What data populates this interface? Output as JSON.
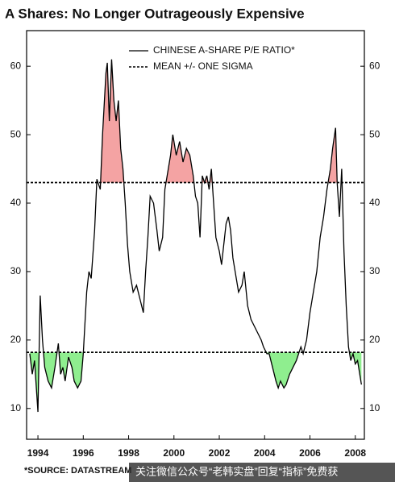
{
  "chart_data": {
    "type": "line",
    "title": "A Shares: No Longer Outrageously Expensive",
    "source": "*SOURCE: DATASTREAM",
    "watermark": "关注微信公众号“老韩实盘”回复“指标”免费获",
    "x": [
      1993.64,
      1993.75,
      1993.85,
      1993.95,
      1994.0,
      1994.05,
      1994.1,
      1994.2,
      1994.3,
      1994.45,
      1994.6,
      1994.75,
      1994.9,
      1995.0,
      1995.1,
      1995.2,
      1995.35,
      1995.5,
      1995.6,
      1995.75,
      1995.9,
      1996.0,
      1996.15,
      1996.25,
      1996.35,
      1996.5,
      1996.6,
      1996.75,
      1996.85,
      1996.95,
      1997.0,
      1997.06,
      1997.15,
      1997.25,
      1997.35,
      1997.45,
      1997.55,
      1997.65,
      1997.75,
      1997.85,
      1997.95,
      1998.05,
      1998.2,
      1998.35,
      1998.5,
      1998.65,
      1998.75,
      1998.85,
      1998.95,
      1999.1,
      1999.25,
      1999.35,
      1999.5,
      1999.6,
      1999.75,
      1999.85,
      1999.95,
      2000.1,
      2000.25,
      2000.4,
      2000.55,
      2000.7,
      2000.85,
      2000.95,
      2001.05,
      2001.15,
      2001.25,
      2001.35,
      2001.45,
      2001.55,
      2001.65,
      2001.75,
      2001.85,
      2002.0,
      2002.1,
      2002.2,
      2002.3,
      2002.4,
      2002.5,
      2002.6,
      2002.75,
      2002.85,
      2003.0,
      2003.1,
      2003.25,
      2003.4,
      2003.55,
      2003.7,
      2003.85,
      2003.95,
      2004.1,
      2004.2,
      2004.35,
      2004.5,
      2004.6,
      2004.7,
      2004.85,
      2004.95,
      2005.1,
      2005.25,
      2005.4,
      2005.5,
      2005.6,
      2005.7,
      2005.85,
      2006.0,
      2006.15,
      2006.3,
      2006.45,
      2006.6,
      2006.75,
      2006.9,
      2007.0,
      2007.13,
      2007.2,
      2007.3,
      2007.4,
      2007.5,
      2007.6,
      2007.7,
      2007.8,
      2007.9,
      2008.0,
      2008.1,
      2008.27
    ],
    "series": [
      {
        "name": "CHINESE A-SHARE P/E RATIO*",
        "color": "#000000",
        "values": [
          18,
          15,
          17,
          12,
          9.5,
          18,
          26.5,
          20,
          16,
          14,
          13,
          16,
          19.5,
          15,
          16,
          14,
          17.5,
          16,
          14,
          13,
          14,
          18,
          27,
          30,
          29,
          36,
          43.5,
          42,
          50,
          56,
          59,
          60.5,
          52,
          61,
          55,
          52,
          55,
          48,
          45,
          40,
          34,
          30,
          27,
          28,
          26,
          24,
          30,
          35,
          41,
          40,
          36,
          33,
          35,
          42,
          45,
          47,
          50,
          47,
          49,
          46,
          48,
          47,
          44,
          41,
          40,
          35,
          44,
          43,
          44,
          42,
          45,
          40,
          35,
          33,
          31,
          34,
          37,
          38,
          36,
          32,
          29,
          27,
          28,
          30,
          25,
          23,
          22,
          21,
          20,
          19,
          18,
          18,
          16,
          14,
          13,
          14,
          13,
          13.5,
          15,
          16,
          17,
          18,
          19,
          18,
          20,
          24,
          27,
          30,
          35,
          38,
          42,
          45,
          48,
          51,
          43,
          38,
          45,
          33,
          25,
          19,
          17,
          18,
          16.5,
          17,
          13.5
        ]
      }
    ],
    "mean_lines": {
      "name": "MEAN +/- ONE SIGMA",
      "values": [
        43,
        18.2
      ]
    },
    "upper_fill": "#f4a3a3",
    "lower_fill": "#8fee8f",
    "xlim": [
      1993.5,
      2008.4
    ],
    "xticks": [
      1994,
      1996,
      1998,
      2000,
      2002,
      2004,
      2006,
      2008
    ],
    "ylim": [
      5.5,
      65.2
    ],
    "yticks": [
      10,
      20,
      30,
      40,
      50,
      60
    ]
  }
}
